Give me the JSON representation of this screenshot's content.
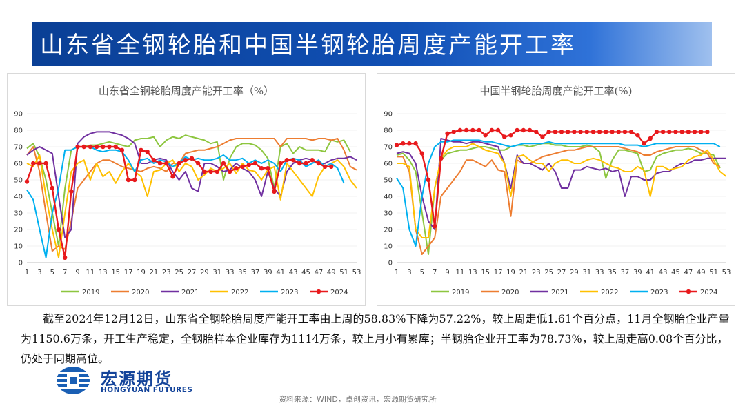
{
  "header": {
    "title": "山东省全钢轮胎和中国半钢轮胎周度产能开工率"
  },
  "colors": {
    "2019": "#8dc63f",
    "2020": "#ed7d31",
    "2021": "#7030a0",
    "2022": "#ffc000",
    "2023": "#00b0f0",
    "2024": "#e8191c"
  },
  "chart_data": [
    {
      "type": "line",
      "title": "山东省全钢轮胎周度产能开工率（%）",
      "xlabel": "",
      "ylabel": "",
      "ylim": [
        0,
        90
      ],
      "yticks": [
        0,
        10,
        20,
        30,
        40,
        50,
        60,
        70,
        80,
        90
      ],
      "xticks": [
        1,
        3,
        5,
        7,
        9,
        11,
        13,
        15,
        17,
        19,
        21,
        23,
        25,
        27,
        29,
        31,
        33,
        35,
        37,
        39,
        41,
        43,
        45,
        47,
        49,
        51,
        53
      ],
      "legend_position": "bottom",
      "series": [
        {
          "name": "2019",
          "values": [
            69,
            72,
            64,
            50,
            30,
            10,
            45,
            68,
            70,
            70,
            71,
            71,
            72,
            73,
            72,
            71,
            70,
            74,
            75,
            75,
            76,
            70,
            74,
            76,
            75,
            77,
            76,
            75,
            74,
            72,
            73,
            50,
            63,
            70,
            72,
            72,
            71,
            68,
            63,
            45,
            70,
            72,
            66,
            70,
            68,
            68,
            68,
            67,
            74,
            73,
            74,
            67,
            null
          ]
        },
        {
          "name": "2020",
          "values": [
            65,
            70,
            55,
            30,
            7,
            10,
            8,
            25,
            45,
            50,
            55,
            60,
            62,
            62,
            60,
            58,
            57,
            56,
            55,
            57,
            58,
            57,
            55,
            60,
            60,
            66,
            67,
            68,
            68,
            69,
            70,
            72,
            74,
            75,
            75,
            75,
            75,
            75,
            75,
            75,
            70,
            75,
            75,
            75,
            75,
            74,
            75,
            75,
            74,
            75,
            68,
            58,
            56
          ]
        },
        {
          "name": "2021",
          "values": [
            65,
            68,
            70,
            68,
            66,
            40,
            15,
            20,
            72,
            76,
            78,
            79,
            79,
            79,
            78,
            77,
            75,
            72,
            60,
            60,
            62,
            63,
            62,
            55,
            50,
            55,
            45,
            43,
            60,
            60,
            58,
            55,
            56,
            60,
            57,
            55,
            50,
            40,
            55,
            45,
            40,
            55,
            60,
            62,
            63,
            62,
            60,
            60,
            62,
            63,
            63,
            64,
            62
          ]
        },
        {
          "name": "2022",
          "values": [
            60,
            58,
            65,
            40,
            20,
            3,
            30,
            55,
            60,
            62,
            50,
            60,
            52,
            55,
            48,
            55,
            60,
            55,
            52,
            40,
            55,
            56,
            60,
            62,
            55,
            60,
            58,
            50,
            53,
            57,
            55,
            57,
            60,
            54,
            60,
            56,
            55,
            50,
            56,
            58,
            38,
            60,
            55,
            50,
            45,
            40,
            52,
            58,
            60,
            62,
            58,
            50,
            45
          ]
        },
        {
          "name": "2023",
          "values": [
            44,
            38,
            20,
            3,
            30,
            45,
            68,
            68,
            70,
            70,
            70,
            68,
            67,
            68,
            68,
            67,
            62,
            55,
            62,
            63,
            60,
            62,
            61,
            58,
            60,
            64,
            62,
            63,
            62,
            62,
            63,
            65,
            62,
            62,
            63,
            60,
            62,
            60,
            62,
            60,
            55,
            62,
            63,
            62,
            58,
            60,
            62,
            58,
            60,
            57,
            48,
            null,
            null
          ]
        },
        {
          "name": "2024",
          "values": [
            49,
            60,
            60,
            60,
            45,
            20,
            3,
            43,
            70,
            70,
            70,
            70,
            70,
            70,
            70,
            68,
            50,
            50,
            68,
            67,
            62,
            60,
            60,
            52,
            60,
            62,
            63,
            60,
            55,
            55,
            55,
            60,
            55,
            57,
            58,
            59,
            60,
            57,
            57,
            43,
            60,
            62,
            62,
            60,
            60,
            62,
            60,
            58,
            58,
            null,
            null,
            null,
            null
          ]
        }
      ]
    },
    {
      "type": "line",
      "title": "中国半钢轮胎周度产能开工率(%)",
      "xlabel": "",
      "ylabel": "",
      "ylim": [
        0,
        90
      ],
      "yticks": [
        0,
        10,
        20,
        30,
        40,
        50,
        60,
        70,
        80,
        90
      ],
      "xticks": [
        1,
        3,
        5,
        7,
        9,
        11,
        13,
        15,
        17,
        19,
        21,
        23,
        25,
        27,
        29,
        31,
        33,
        35,
        37,
        39,
        41,
        43,
        45,
        47,
        49,
        51,
        53
      ],
      "legend_position": "bottom",
      "series": [
        {
          "name": "2019",
          "values": [
            65,
            66,
            62,
            55,
            30,
            5,
            45,
            62,
            66,
            67,
            68,
            68,
            69,
            70,
            70,
            69,
            68,
            68,
            70,
            71,
            71,
            70,
            71,
            72,
            72,
            71,
            71,
            70,
            70,
            70,
            71,
            70,
            67,
            51,
            62,
            68,
            68,
            67,
            66,
            55,
            56,
            64,
            66,
            67,
            68,
            68,
            69,
            68,
            66,
            66,
            65,
            57,
            null
          ]
        },
        {
          "name": "2020",
          "values": [
            64,
            64,
            55,
            20,
            5,
            10,
            15,
            40,
            45,
            50,
            55,
            62,
            62,
            60,
            58,
            62,
            56,
            55,
            28,
            62,
            60,
            60,
            62,
            64,
            65,
            66,
            67,
            68,
            68,
            69,
            70,
            70,
            70,
            70,
            70,
            70,
            69,
            68,
            67,
            65,
            65,
            67,
            68,
            69,
            70,
            70,
            70,
            70,
            68,
            66,
            60,
            58,
            null
          ]
        },
        {
          "name": "2021",
          "values": [
            66,
            67,
            66,
            60,
            40,
            25,
            20,
            75,
            74,
            73,
            73,
            72,
            73,
            73,
            72,
            71,
            70,
            60,
            45,
            65,
            60,
            60,
            58,
            56,
            60,
            55,
            45,
            45,
            56,
            56,
            58,
            57,
            56,
            57,
            55,
            56,
            40,
            52,
            52,
            50,
            50,
            54,
            55,
            55,
            58,
            60,
            60,
            62,
            62,
            63,
            63,
            63,
            63
          ]
        },
        {
          "name": "2022",
          "values": [
            60,
            60,
            58,
            20,
            15,
            15,
            45,
            63,
            68,
            70,
            70,
            70,
            72,
            70,
            68,
            67,
            66,
            60,
            40,
            64,
            65,
            62,
            60,
            60,
            55,
            60,
            62,
            62,
            60,
            60,
            62,
            63,
            62,
            60,
            58,
            57,
            55,
            55,
            58,
            56,
            40,
            58,
            58,
            56,
            57,
            58,
            62,
            64,
            65,
            68,
            62,
            55,
            52
          ]
        },
        {
          "name": "2023",
          "values": [
            51,
            45,
            20,
            10,
            40,
            60,
            70,
            73,
            73,
            74,
            74,
            74,
            74,
            74,
            73,
            73,
            72,
            71,
            70,
            71,
            72,
            72,
            72,
            72,
            73,
            72,
            72,
            72,
            72,
            72,
            72,
            72,
            72,
            72,
            72,
            72,
            71,
            71,
            71,
            70,
            71,
            72,
            72,
            72,
            72,
            72,
            72,
            72,
            72,
            72,
            72,
            70,
            null
          ]
        },
        {
          "name": "2024",
          "values": [
            71,
            72,
            72,
            72,
            66,
            50,
            22,
            63,
            78,
            79,
            80,
            80,
            80,
            80,
            77,
            80,
            80,
            76,
            77,
            80,
            80,
            80,
            79,
            76,
            79,
            79,
            79,
            79,
            79,
            79,
            79,
            79,
            79,
            79,
            79,
            79,
            79,
            79,
            77,
            72,
            75,
            79,
            79,
            79,
            79,
            79,
            79,
            79,
            79,
            79,
            null,
            null,
            null
          ]
        }
      ]
    }
  ],
  "paragraph": "截至2024年12月12日，山东省全钢轮胎周度产能开工率由上周的58.83%下降为57.22%，较上周走低1.61个百分点，11月全钢胎企业产量为1150.6万条，开工生产稳定，全钢胎样本企业库存为1114万条，较上月小有累库；半钢胎企业开工率为78.73%，较上周走高0.08个百分比，仍处于同期高位。",
  "logo": {
    "cn": "宏源期货",
    "en": "HONGYUAN FUTURES"
  },
  "source": "资料来源：WIND，卓创资讯，宏源期货研究所"
}
